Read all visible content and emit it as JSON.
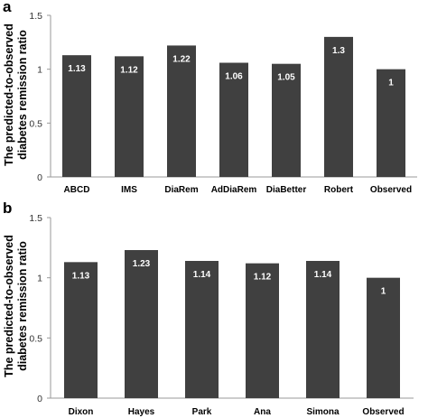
{
  "chart_data": [
    {
      "panel": "a",
      "type": "bar",
      "ylabel_lines": [
        "The predicted-to-observed",
        "diabetes remission ratio"
      ],
      "ylim": [
        0,
        1.5
      ],
      "yticks": [
        "0",
        "0.5",
        "1",
        "1.5"
      ],
      "categories": [
        "ABCD",
        "IMS",
        "DiaRem",
        "AdDiaRem",
        "DiaBetter",
        "Robert",
        "Observed"
      ],
      "values": [
        1.13,
        1.12,
        1.22,
        1.06,
        1.05,
        1.3,
        1
      ],
      "data_labels": [
        "1.13",
        "1.12",
        "1.22",
        "1.06",
        "1.05",
        "1.3",
        "1"
      ],
      "bar_color": "#404040",
      "grid": false
    },
    {
      "panel": "b",
      "type": "bar",
      "ylabel_lines": [
        "The predicted-to-observed",
        "diabetes remission ratio"
      ],
      "ylim": [
        0,
        1.5
      ],
      "yticks": [
        "0",
        "0.5",
        "1",
        "1.5"
      ],
      "categories": [
        "Dixon",
        "Hayes",
        "Park",
        "Ana",
        "Simona",
        "Observed"
      ],
      "values": [
        1.13,
        1.23,
        1.14,
        1.12,
        1.14,
        1
      ],
      "data_labels": [
        "1.13",
        "1.23",
        "1.14",
        "1.12",
        "1.14",
        "1"
      ],
      "bar_color": "#404040",
      "grid": false
    }
  ]
}
